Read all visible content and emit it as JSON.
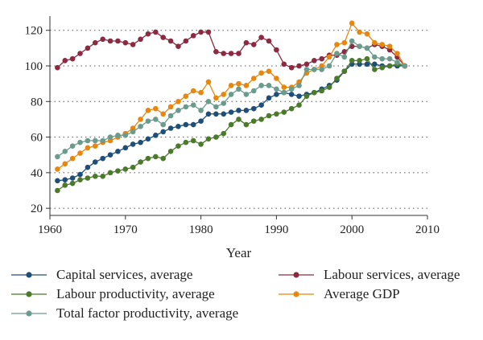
{
  "chart_data": {
    "type": "line",
    "xlabel": "Year",
    "ylabel": "",
    "xlim": [
      1960,
      2010
    ],
    "ylim": [
      16,
      128
    ],
    "xticks": [
      1960,
      1970,
      1980,
      1990,
      2000,
      2010
    ],
    "yticks": [
      20,
      40,
      60,
      80,
      100,
      120
    ],
    "grid": "horizontal dotted",
    "x": [
      1961,
      1962,
      1963,
      1964,
      1965,
      1966,
      1967,
      1968,
      1969,
      1970,
      1971,
      1972,
      1973,
      1974,
      1975,
      1976,
      1977,
      1978,
      1979,
      1980,
      1981,
      1982,
      1983,
      1984,
      1985,
      1986,
      1987,
      1988,
      1989,
      1990,
      1991,
      1992,
      1993,
      1994,
      1995,
      1996,
      1997,
      1998,
      1999,
      2000,
      2001,
      2002,
      2003,
      2004,
      2005,
      2006,
      2007
    ],
    "series": [
      {
        "name": "Capital services, average",
        "color": "#1f4e79",
        "values": [
          35.5,
          36,
          37,
          39,
          43,
          46,
          48,
          50,
          52,
          54,
          56,
          57,
          59,
          61,
          63,
          65,
          66,
          67,
          67,
          69,
          73,
          73,
          73,
          74,
          75,
          75,
          76,
          78,
          82,
          84,
          85,
          84,
          83,
          84,
          85,
          87,
          89,
          92,
          97,
          101,
          101,
          101,
          101,
          100,
          100,
          100,
          100
        ]
      },
      {
        "name": "Labour services, average",
        "color": "#8b2a40",
        "values": [
          99,
          103,
          104,
          107,
          110,
          113,
          115,
          114,
          114,
          113,
          112,
          115,
          118,
          119,
          116,
          114,
          111,
          114,
          117,
          119,
          119,
          108,
          107,
          107,
          107,
          113,
          112,
          116,
          114,
          109,
          101,
          99,
          100,
          101,
          103,
          104,
          106,
          106,
          108,
          111,
          111,
          110,
          112,
          111,
          109,
          105,
          100
        ]
      },
      {
        "name": "Labour productivity, average",
        "color": "#4a7a2a",
        "values": [
          30,
          33,
          34,
          36,
          37,
          38,
          38,
          40,
          41,
          42,
          43,
          46,
          48,
          49,
          48,
          52,
          55,
          57,
          58,
          56,
          59,
          60,
          62,
          67,
          70,
          67,
          69,
          70,
          72,
          73,
          74,
          76,
          78,
          83,
          85,
          86,
          88,
          93,
          97,
          103,
          103,
          104,
          98,
          99,
          100,
          101,
          100
        ]
      },
      {
        "name": "Average GDP",
        "color": "#e8870e",
        "values": [
          42,
          45,
          48,
          51,
          54,
          55,
          57,
          58,
          60,
          62,
          65,
          70,
          75,
          76,
          73,
          77,
          80,
          83,
          86,
          85,
          91,
          82,
          84,
          89,
          90,
          89,
          93,
          96,
          97,
          93,
          88,
          88,
          91,
          96,
          98,
          100,
          105,
          112,
          113,
          124,
          119,
          118,
          113,
          112,
          111,
          107,
          100
        ]
      },
      {
        "name": "Total factor productivity, average",
        "color": "#6b9b8c",
        "values": [
          49,
          52,
          55,
          57,
          58,
          58,
          58,
          60,
          61,
          61,
          63,
          66,
          69,
          70,
          67,
          72,
          75,
          77,
          78,
          75,
          80,
          77,
          79,
          84,
          87,
          84,
          86,
          89,
          89,
          87,
          85,
          87,
          89,
          98,
          98,
          98,
          100,
          107,
          105,
          114,
          111,
          110,
          105,
          104,
          104,
          102,
          100
        ]
      }
    ],
    "legend": {
      "placement": "bottom",
      "items": [
        "Capital services, average",
        "Labour services, average",
        "Labour productivity, average",
        "Average GDP",
        "Total factor productivity, average"
      ]
    }
  }
}
